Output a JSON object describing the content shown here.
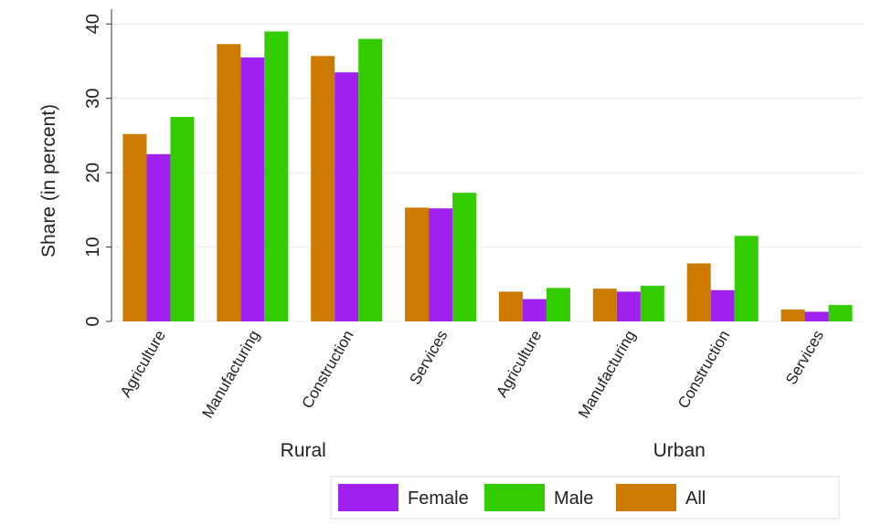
{
  "chart_data": {
    "type": "bar",
    "title": "",
    "ylabel": "Share (in percent)",
    "xlabel": "",
    "ylim": [
      0,
      42
    ],
    "yticks": [
      0,
      10,
      20,
      30,
      40
    ],
    "grid": true,
    "legend_position": "bottom",
    "groups": [
      {
        "label": "Rural",
        "categories": [
          "Agriculture",
          "Manufacturing",
          "Construction",
          "Services"
        ]
      },
      {
        "label": "Urban",
        "categories": [
          "Agriculture",
          "Manufacturing",
          "Construction",
          "Services"
        ]
      }
    ],
    "series": [
      {
        "name": "All",
        "color": "#cc7a00",
        "values": [
          25.2,
          37.3,
          35.7,
          15.3,
          4.0,
          4.4,
          7.8,
          1.6
        ]
      },
      {
        "name": "Female",
        "color": "#a020f0",
        "values": [
          22.5,
          35.5,
          33.5,
          15.2,
          3.0,
          4.0,
          4.2,
          1.3
        ]
      },
      {
        "name": "Male",
        "color": "#33cc00",
        "values": [
          27.5,
          39.0,
          38.0,
          17.3,
          4.5,
          4.8,
          11.5,
          2.2
        ]
      }
    ],
    "legend_order": [
      "Female",
      "Male",
      "All"
    ]
  }
}
